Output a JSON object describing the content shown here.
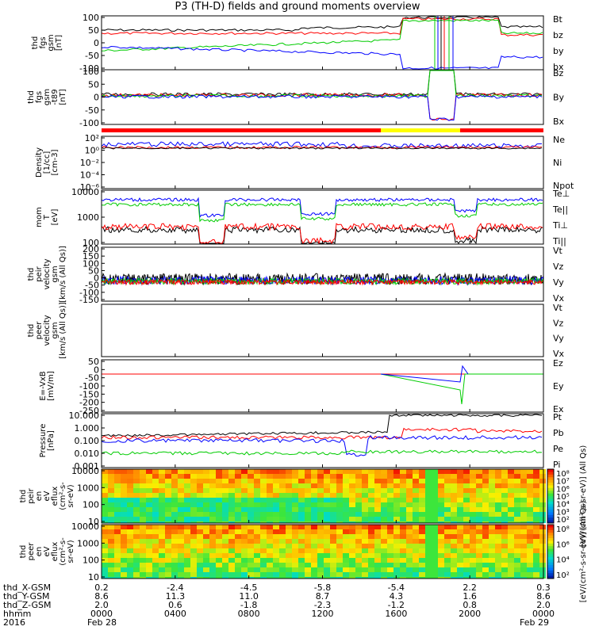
{
  "title": "P3 (TH-D) fields and ground moments overview",
  "chart_data": {
    "type": "line",
    "title": "P3 (TH-D) fields and ground moments overview",
    "x_ticks": [
      "0000",
      "0400",
      "0800",
      "1200",
      "1600",
      "2000",
      "0000"
    ],
    "ephemeris": {
      "labels": [
        "thd_X-GSM",
        "thd_Y-GSM",
        "thd_Z-GSM",
        "hhmm",
        "2016"
      ],
      "x_gsm": [
        "0.2",
        "-2.4",
        "-4.5",
        "-5.8",
        "-5.4",
        "2.2",
        "0.3"
      ],
      "y_gsm": [
        "8.6",
        "11.3",
        "11.0",
        "8.7",
        "4.3",
        "1.6",
        "8.6"
      ],
      "z_gsm": [
        "2.0",
        "0.6",
        "-1.8",
        "-2.3",
        "-1.2",
        "0.8",
        "2.0"
      ],
      "hhmm": [
        "0000",
        "0400",
        "0800",
        "1200",
        "1600",
        "2000",
        "0000"
      ],
      "dates": [
        "Feb 28",
        "Feb 29"
      ]
    },
    "colorbar_labels": [
      "[eV/(cm²-s-sr-eV)] (All Qs)",
      "[eV/(cm²-s-sr-eV)] (All Qs)"
    ],
    "panels": [
      {
        "ylabel": [
          "thd",
          "fgs",
          "gsm",
          "[nT]"
        ],
        "yticks": [
          "100",
          "50",
          "0",
          "-50",
          "-100"
        ],
        "ylim": [
          -100,
          100
        ],
        "legend": [
          {
            "name": "Bt",
            "color": "#000000"
          },
          {
            "name": "bz",
            "color": "#ff0000"
          },
          {
            "name": "by",
            "color": "#00cc00"
          },
          {
            "name": "bx",
            "color": "#0000ff"
          }
        ]
      },
      {
        "ylabel": [
          "thd",
          "fgs",
          "gsm",
          "-t89",
          "[nT]"
        ],
        "yticks": [
          "100",
          "50",
          "0",
          "-50",
          "-100"
        ],
        "ylim": [
          -120,
          120
        ],
        "legend": [
          {
            "name": "Bz",
            "color": "#ff0000"
          },
          {
            "name": "By",
            "color": "#00cc00"
          },
          {
            "name": "Bx",
            "color": "#0000ff"
          }
        ]
      },
      {
        "ylabel": [
          "Density",
          "[1/cc]",
          "[cm-3]"
        ],
        "yticks": [
          "10²",
          "10⁰",
          "10⁻²",
          "10⁻⁴",
          "10⁻⁶"
        ],
        "scale": "log",
        "legend": [
          {
            "name": "Ne",
            "color": "#ff0000"
          },
          {
            "name": "Ni",
            "color": "#000000"
          },
          {
            "name": "Npot",
            "color": "#0000ff"
          }
        ]
      },
      {
        "ylabel": [
          "mom",
          "T",
          "[eV]"
        ],
        "yticks": [
          "10000",
          "1000",
          "100"
        ],
        "scale": "log",
        "legend": [
          {
            "name": "Te⊥",
            "color": "#ff0000"
          },
          {
            "name": "Te||",
            "color": "#000000"
          },
          {
            "name": "Ti⊥",
            "color": "#ff0000"
          },
          {
            "name": "Ti||",
            "color": "#00cc00"
          }
        ]
      },
      {
        "ylabel": [
          "thd",
          "peir",
          "velocity",
          "gsm",
          "[km/s (All Qs)]"
        ],
        "yticks": [
          "200",
          "150",
          "100",
          "50",
          "0",
          "-50",
          "-100",
          "-150"
        ],
        "ylim": [
          -150,
          200
        ],
        "legend": [
          {
            "name": "Vt",
            "color": "#000000"
          },
          {
            "name": "Vz",
            "color": "#ff0000"
          },
          {
            "name": "Vy",
            "color": "#00cc00"
          },
          {
            "name": "Vx",
            "color": "#0000ff"
          }
        ]
      },
      {
        "ylabel": [
          "thd",
          "peer",
          "velocity",
          "gsm",
          "[km/s (All Qs)]"
        ],
        "yticks": [],
        "legend": [
          {
            "name": "Vt",
            "color": "#000000"
          },
          {
            "name": "Vz",
            "color": "#ff0000"
          },
          {
            "name": "Vy",
            "color": "#00cc00"
          },
          {
            "name": "Vx",
            "color": "#0000ff"
          }
        ]
      },
      {
        "ylabel": [
          "E=-VxB",
          "[mV/m]"
        ],
        "yticks": [
          "50",
          "0",
          "-50",
          "-100",
          "-150",
          "-200",
          "-250"
        ],
        "ylim": [
          -250,
          50
        ],
        "legend": [
          {
            "name": "Ez",
            "color": "#ff0000"
          },
          {
            "name": "Ey",
            "color": "#00cc00"
          },
          {
            "name": "Ex",
            "color": "#0000ff"
          }
        ]
      },
      {
        "ylabel": [
          "Pressure",
          "[nPa]"
        ],
        "yticks": [
          "10.000",
          "1.000",
          "0.100",
          "0.010",
          "0.001"
        ],
        "scale": "log",
        "legend": [
          {
            "name": "Pt",
            "color": "#000000"
          },
          {
            "name": "Pb",
            "color": "#ff0000"
          },
          {
            "name": "Pe",
            "color": "#00cc00"
          },
          {
            "name": "Pi",
            "color": "#0000ff"
          }
        ]
      },
      {
        "ylabel": [
          "thd",
          "peir",
          "en",
          "eV",
          "eflux",
          "(cm²-s-",
          "sr-eV)"
        ],
        "yticks": [
          "10000",
          "1000",
          "100",
          "10"
        ],
        "type": "spectrogram"
      },
      {
        "ylabel": [
          "thd",
          "peer",
          "en",
          "eV",
          "eflux",
          "(cm²-s-",
          "sr-eV)"
        ],
        "yticks": [
          "10000",
          "1000",
          "100",
          "10"
        ],
        "type": "spectrogram"
      }
    ],
    "colorbar1_ticks": [
      "10⁸",
      "10⁷",
      "10⁶",
      "10⁵",
      "10⁴",
      "10³",
      "10²"
    ],
    "colorbar2_ticks": [
      "10⁸",
      "10⁶",
      "10⁴",
      "10²"
    ]
  }
}
